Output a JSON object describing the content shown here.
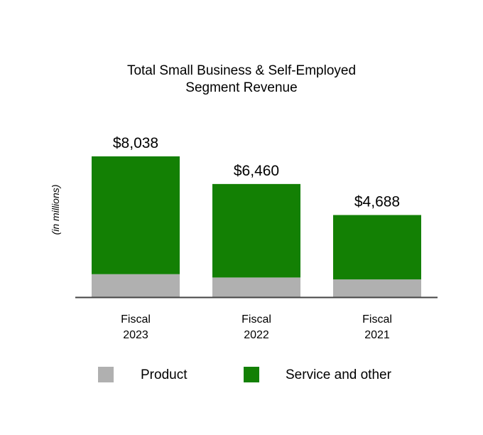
{
  "chart_data": {
    "type": "bar",
    "stacked": true,
    "title": "Total Small Business & Self-Employed",
    "subtitle": "Segment Revenue",
    "ylabel": "(in millions)",
    "categories": [
      {
        "line1": "Fiscal",
        "line2": "2023"
      },
      {
        "line1": "Fiscal",
        "line2": "2022"
      },
      {
        "line1": "Fiscal",
        "line2": "2021"
      }
    ],
    "totals": [
      "$8,038",
      "$6,460",
      "$4,688"
    ],
    "total_values": [
      8038,
      6460,
      4688
    ],
    "series": [
      {
        "name": "Product",
        "values": [
          1310,
          1120,
          1010
        ],
        "color": "#b0b0b0"
      },
      {
        "name": "Service and other",
        "values": [
          6728,
          5340,
          3678
        ],
        "color": "#138004"
      }
    ],
    "ylim": [
      0,
      8038
    ],
    "grid": false,
    "legend_position": "bottom"
  }
}
